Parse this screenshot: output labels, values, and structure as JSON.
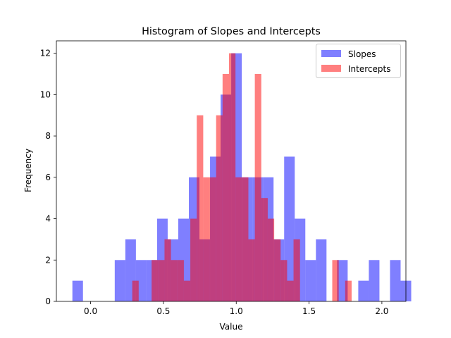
{
  "chart_data": {
    "type": "histogram",
    "title": "Histogram of Slopes and Intercepts",
    "xlabel": "Value",
    "ylabel": "Frequency",
    "xlim": [
      -0.235,
      2.165
    ],
    "ylim": [
      0,
      12.6
    ],
    "xticks": [
      0.0,
      0.5,
      1.0,
      1.5,
      2.0
    ],
    "xtick_labels": [
      "0.0",
      "0.5",
      "1.0",
      "1.5",
      "2.0"
    ],
    "yticks": [
      0,
      2,
      4,
      6,
      8,
      10,
      12
    ],
    "ytick_labels": [
      "0",
      "2",
      "4",
      "6",
      "8",
      "10",
      "12"
    ],
    "legend_position": "upper right",
    "grid": false,
    "alpha": 0.5,
    "series": [
      {
        "name": "Slopes",
        "color": "#0000ff",
        "bin_start": -0.125,
        "bin_width": 0.0727,
        "counts": [
          1,
          0,
          0,
          0,
          2,
          3,
          2,
          2,
          4,
          3,
          4,
          6,
          3,
          7,
          10,
          12,
          6,
          6,
          6,
          3,
          7,
          4,
          2,
          3,
          0,
          2,
          0,
          1,
          2,
          0,
          2,
          1
        ]
      },
      {
        "name": "Intercepts",
        "color": "#ff0000",
        "bin_start": 0.286,
        "bin_width": 0.0443,
        "counts": [
          1,
          0,
          0,
          2,
          2,
          3,
          2,
          2,
          1,
          4,
          9,
          6,
          6,
          9,
          11,
          12,
          6,
          6,
          3,
          11,
          5,
          4,
          3,
          2,
          1,
          3,
          0,
          0,
          0,
          0,
          0,
          2,
          0,
          1
        ]
      }
    ]
  }
}
